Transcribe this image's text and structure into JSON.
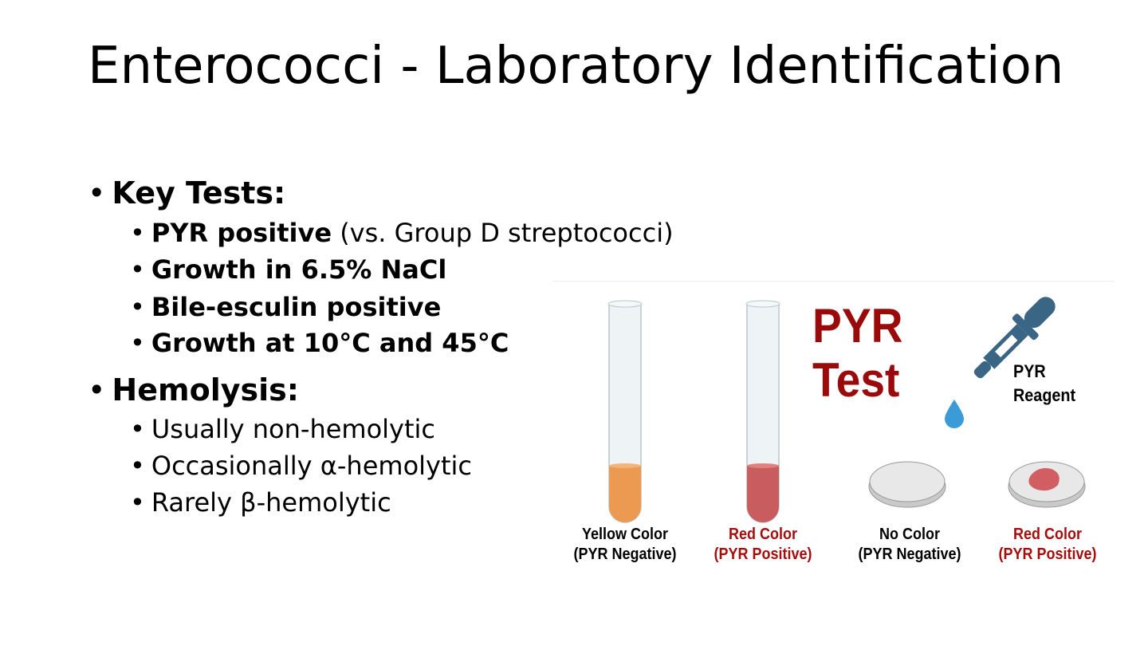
{
  "slide": {
    "title": "Enterococci - Laboratory Identification",
    "sections": [
      {
        "heading": "Key Tests:",
        "items": [
          {
            "bold": "PYR positive",
            "normal": " (vs. Group D streptococci)"
          },
          {
            "bold": "Growth in 6.5% NaCl",
            "normal": ""
          },
          {
            "bold": "Bile-esculin positive",
            "normal": ""
          },
          {
            "bold": "Growth at 10°C and 45°C",
            "normal": ""
          }
        ]
      },
      {
        "heading": "Hemolysis:",
        "items": [
          {
            "bold": "",
            "normal": "Usually non-hemolytic"
          },
          {
            "bold": "",
            "normal": "Occasionally α-hemolytic"
          },
          {
            "bold": "",
            "normal": "Rarely β-hemolytic"
          }
        ]
      }
    ],
    "bullet": "•"
  },
  "figure": {
    "title_line1": "PYR",
    "title_line2": "Test",
    "reagent_line1": "PYR",
    "reagent_line2": "Reagent",
    "labels": [
      {
        "line1": "Yellow Color",
        "line2": "(PYR Negative)",
        "color": "#000000"
      },
      {
        "line1": "Red Color",
        "line2": "(PYR Positive)",
        "color": "#a50d0d"
      },
      {
        "line1": "No Color",
        "line2": "(PYR Negative)",
        "color": "#000000"
      },
      {
        "line1": "Red Color",
        "line2": "(PYR Positive)",
        "color": "#a50d0d"
      }
    ],
    "colors": {
      "yellow_liquid": "#ec9a52",
      "red_liquid": "#c95c5e",
      "dropper": "#3a6585",
      "drop": "#3b9bd6",
      "title": "#9a0a0a"
    }
  }
}
